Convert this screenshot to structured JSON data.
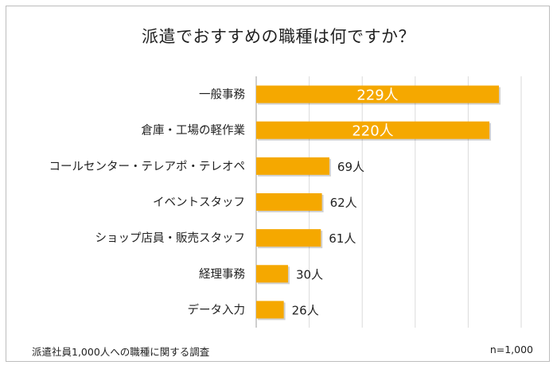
{
  "chart_data": {
    "type": "bar",
    "orientation": "horizontal",
    "title": "派遣でおすすめの職種は何ですか？",
    "categories": [
      "一般事務",
      "倉庫・工場の軽作業",
      "コールセンター・テレアポ・テレオペ",
      "イベントスタッフ",
      "ショップ店員・販売スタッフ",
      "経理事務",
      "データ入力"
    ],
    "values": [
      229,
      220,
      69,
      62,
      61,
      30,
      26
    ],
    "data_labels": [
      "229人",
      "220人",
      "69人",
      "62人",
      "61人",
      "30人",
      "26人"
    ],
    "xlim": [
      0,
      250
    ],
    "grid": true,
    "bar_color": "#f5a800",
    "inside_label_color": "#ffffff",
    "outside_label_color": "#222222"
  },
  "footer": {
    "note": "派遣社員1,000人への職種に関する調査",
    "sample": "n=1,000"
  }
}
